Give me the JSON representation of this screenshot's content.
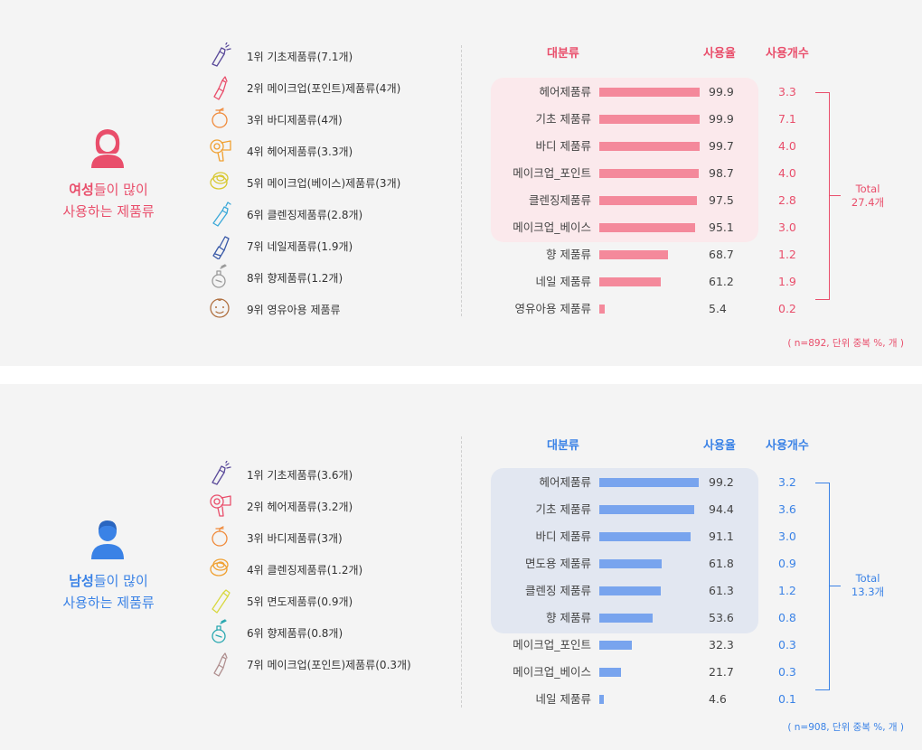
{
  "colors": {
    "female_accent": "#e94e6b",
    "female_bar": "#f4899b",
    "female_highlight": "#fbe9ec",
    "male_accent": "#3a82e6",
    "male_bar": "#78a4ee",
    "male_highlight": "#e2e7f1",
    "panel_bg": "#f4f4f4"
  },
  "female": {
    "caption": {
      "strong": "여성",
      "rest_line1": "들이 많이",
      "line2": "사용하는 제품류"
    },
    "ranking": [
      {
        "label": "1위 기초제품류(7.1개)",
        "icon": "spray-bottle-icon"
      },
      {
        "label": "2위 메이크업(포인트)제품류(4개)",
        "icon": "lipstick-icon"
      },
      {
        "label": "3위 바디제품류(4개)",
        "icon": "body-bottle-icon"
      },
      {
        "label": "4위 헤어제품류(3.3개)",
        "icon": "hair-dryer-icon"
      },
      {
        "label": "5위 메이크업(베이스)제품류(3개)",
        "icon": "compact-icon"
      },
      {
        "label": "6위 클렌징제품류(2.8개)",
        "icon": "cleansing-bottle-icon"
      },
      {
        "label": "7위 네일제품류(1.9개)",
        "icon": "nail-polish-icon"
      },
      {
        "label": "8위 향제품류(1.2개)",
        "icon": "perfume-icon"
      },
      {
        "label": "9위 영유아용 제품류",
        "icon": "baby-face-icon"
      }
    ],
    "headers": {
      "category": "대분류",
      "rate": "사용율",
      "count": "사용개수"
    },
    "total": {
      "line1": "Total",
      "line2": "27.4개"
    },
    "note": "( n=892, 단위 중복 %, 개 )"
  },
  "male": {
    "caption": {
      "strong": "남성",
      "rest_line1": "들이 많이",
      "line2": "사용하는 제품류"
    },
    "ranking": [
      {
        "label": "1위 기초제품류(3.6개)",
        "icon": "spray-bottle-icon"
      },
      {
        "label": "2위 헤어제품류(3.2개)",
        "icon": "hair-dryer-icon"
      },
      {
        "label": "3위 바디제품류(3개)",
        "icon": "body-bottle-icon"
      },
      {
        "label": "4위 클렌징제품류(1.2개)",
        "icon": "compact-icon"
      },
      {
        "label": "5위 면도제품류(0.9개)",
        "icon": "shaving-tube-icon"
      },
      {
        "label": "6위 향제품류(0.8개)",
        "icon": "perfume-icon"
      },
      {
        "label": "7위 메이크업(포인트)제품류(0.3개)",
        "icon": "lipstick-icon"
      }
    ],
    "headers": {
      "category": "대분류",
      "rate": "사용율",
      "count": "사용개수"
    },
    "total": {
      "line1": "Total",
      "line2": "13.3개"
    },
    "note": "( n=908, 단위 중복 %, 개 )"
  },
  "chart_data": [
    {
      "type": "bar",
      "orientation": "horizontal",
      "categories": [
        "헤어제품류",
        "기초 제품류",
        "바디 제품류",
        "메이크업_포인트",
        "클렌징제품류",
        "메이크업_베이스",
        "향 제품류",
        "네일 제품류",
        "영유아용 제품류"
      ],
      "series": [
        {
          "name": "사용율",
          "values": [
            99.9,
            99.9,
            99.7,
            98.7,
            97.5,
            95.1,
            68.7,
            61.2,
            5.4
          ]
        },
        {
          "name": "사용개수",
          "values": [
            3.3,
            7.1,
            4.0,
            4.0,
            2.8,
            3.0,
            1.2,
            1.9,
            0.2
          ]
        }
      ],
      "xlim": [
        0,
        100
      ],
      "highlighted_rows": 6
    },
    {
      "type": "bar",
      "orientation": "horizontal",
      "categories": [
        "헤어제품류",
        "기초 제품류",
        "바디 제품류",
        "면도용 제품류",
        "클렌징 제품류",
        "향 제품류",
        "메이크업_포인트",
        "메이크업_베이스",
        "네일 제품류"
      ],
      "series": [
        {
          "name": "사용율",
          "values": [
            99.2,
            94.4,
            91.1,
            61.8,
            61.3,
            53.6,
            32.3,
            21.7,
            4.6
          ]
        },
        {
          "name": "사용개수",
          "values": [
            3.2,
            3.6,
            3.0,
            0.9,
            1.2,
            0.8,
            0.3,
            0.3,
            0.1
          ]
        }
      ],
      "xlim": [
        0,
        100
      ],
      "highlighted_rows": 6
    }
  ]
}
